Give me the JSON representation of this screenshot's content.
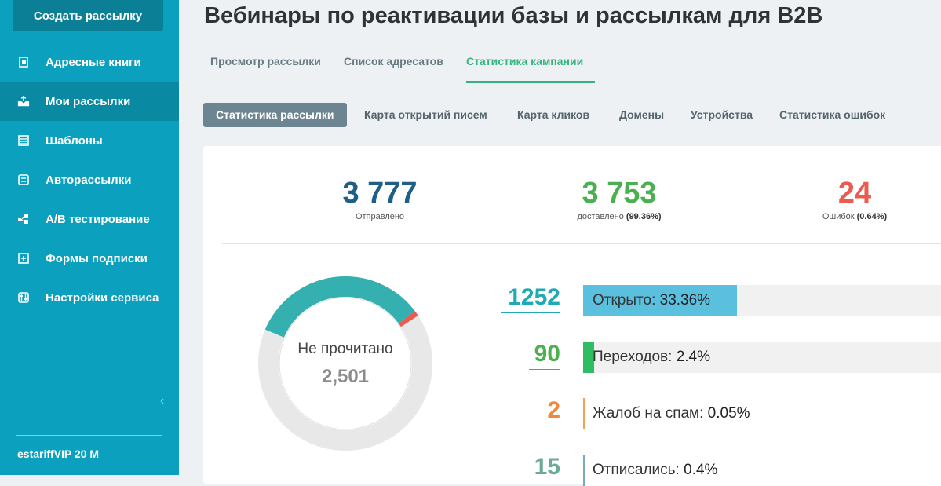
{
  "sidebar": {
    "create_button": "Создать рассылку",
    "items": [
      {
        "label": "Адресные книги",
        "icon": "address-book-icon"
      },
      {
        "label": "Мои рассылки",
        "icon": "mailing-icon"
      },
      {
        "label": "Шаблоны",
        "icon": "templates-icon"
      },
      {
        "label": "Авторассылки",
        "icon": "auto-mailing-icon"
      },
      {
        "label": "A/B тестирование",
        "icon": "ab-test-icon"
      },
      {
        "label": "Формы подписки",
        "icon": "subscription-form-icon"
      },
      {
        "label": "Настройки сервиса",
        "icon": "settings-icon"
      }
    ],
    "active_index": 1,
    "collapse_icon": "‹",
    "tariff": "estariffVIP 20 M"
  },
  "page": {
    "title": "Вебинары по реактивации базы и рассылкам для B2B",
    "tabs": [
      "Просмотр рассылки",
      "Список адресатов",
      "Статистика кампании"
    ],
    "subtabs": [
      "Статистика рассылки",
      "Карта открытий писем",
      "Карта кликов",
      "Домены",
      "Устройства",
      "Статистика ошибок"
    ]
  },
  "kpis": {
    "sent": {
      "value": "3 777",
      "label": "Отправлено",
      "color": "#1d5f86"
    },
    "delivered": {
      "value": "3 753",
      "label": "доставлено",
      "pct": "(99.36%)",
      "color": "#4caf50"
    },
    "errors": {
      "value": "24",
      "label": "Ошибок",
      "pct": "(0.64%)",
      "color": "#ec5b4f"
    }
  },
  "donut": {
    "label": "Не прочитано",
    "value": "2,501",
    "segments": [
      {
        "name": "opened",
        "fraction": 0.3336,
        "color": "#35b0b0"
      },
      {
        "name": "errors",
        "fraction": 0.0064,
        "color": "#ec5b4f"
      },
      {
        "name": "unread",
        "fraction": 0.66,
        "color": "#e8e8e8"
      }
    ]
  },
  "metrics": [
    {
      "num": "1252",
      "label": "Открыто: ",
      "value": "33.36%",
      "color": "#1faab5",
      "bar_color": "#5bc0de",
      "fraction": 0.3336
    },
    {
      "num": "90",
      "label": "Переходов: ",
      "value": "2.4%",
      "color": "#4caf50",
      "bar_color": "#2ebd62",
      "fraction": 0.024
    },
    {
      "num": "2",
      "label": "Жалоб на спам: ",
      "value": "0.05%",
      "color": "#f0883e",
      "bar_color": "#f0a050",
      "fraction": 0.0005
    },
    {
      "num": "15",
      "label": "Отписались: ",
      "value": "0.4%",
      "color": "#5aa",
      "bar_color": "#7ab",
      "fraction": 0.004
    }
  ]
}
